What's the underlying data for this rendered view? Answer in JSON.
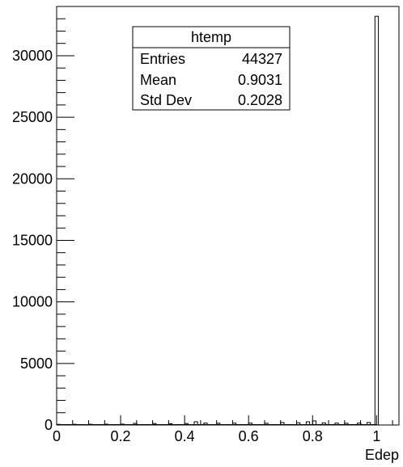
{
  "chart_data": {
    "type": "bar",
    "histogram_name": "htemp",
    "xlabel": "Edep",
    "ylabel": "",
    "xlim": [
      0,
      1.07
    ],
    "ylim": [
      0,
      34000
    ],
    "x_ticks": [
      {
        "value": 0,
        "label": "0"
      },
      {
        "value": 0.2,
        "label": "0.2"
      },
      {
        "value": 0.4,
        "label": "0.4"
      },
      {
        "value": 0.6,
        "label": "0.6"
      },
      {
        "value": 0.8,
        "label": "0.8"
      },
      {
        "value": 1,
        "label": "1"
      }
    ],
    "y_ticks": [
      {
        "value": 0,
        "label": "0"
      },
      {
        "value": 5000,
        "label": "5000"
      },
      {
        "value": 10000,
        "label": "10000"
      },
      {
        "value": 15000,
        "label": "15000"
      },
      {
        "value": 20000,
        "label": "20000"
      },
      {
        "value": 25000,
        "label": "25000"
      },
      {
        "value": 30000,
        "label": "30000"
      }
    ],
    "bin_width": 0.0107,
    "bins": [
      {
        "x": 0.0,
        "value": 50
      },
      {
        "x": 0.05,
        "value": 55
      },
      {
        "x": 0.1,
        "value": 60
      },
      {
        "x": 0.15,
        "value": 65
      },
      {
        "x": 0.2,
        "value": 70
      },
      {
        "x": 0.24,
        "value": 130
      },
      {
        "x": 0.3,
        "value": 120
      },
      {
        "x": 0.35,
        "value": 110
      },
      {
        "x": 0.4,
        "value": 120
      },
      {
        "x": 0.43,
        "value": 260
      },
      {
        "x": 0.46,
        "value": 150
      },
      {
        "x": 0.5,
        "value": 140
      },
      {
        "x": 0.55,
        "value": 150
      },
      {
        "x": 0.6,
        "value": 150
      },
      {
        "x": 0.65,
        "value": 140
      },
      {
        "x": 0.7,
        "value": 200
      },
      {
        "x": 0.75,
        "value": 180
      },
      {
        "x": 0.78,
        "value": 260
      },
      {
        "x": 0.8,
        "value": 330
      },
      {
        "x": 0.83,
        "value": 170
      },
      {
        "x": 0.87,
        "value": 150
      },
      {
        "x": 0.9,
        "value": 140
      },
      {
        "x": 0.94,
        "value": 150
      },
      {
        "x": 0.97,
        "value": 200
      },
      {
        "x": 0.995,
        "value": 33200
      }
    ],
    "stats": {
      "title": "htemp",
      "rows": [
        {
          "label": "Entries",
          "value": "44327"
        },
        {
          "label": "Mean",
          "value": "0.9031"
        },
        {
          "label": "Std Dev",
          "value": "0.2028"
        }
      ]
    }
  }
}
